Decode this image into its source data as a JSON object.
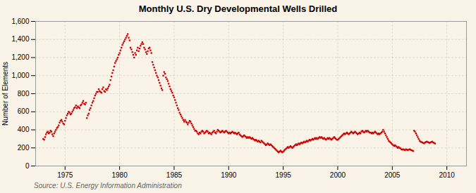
{
  "chart_data": {
    "type": "scatter",
    "title": "Monthly U.S. Dry Developmental Wells Drilled",
    "ylabel": "Number of Elements",
    "source": "Source: U.S. Energy Information Administration",
    "color": "#CC0000",
    "marker": "square",
    "grid": true,
    "xlim": [
      1972.3,
      2011.8
    ],
    "xticks": [
      1975,
      1980,
      1985,
      1990,
      1995,
      2000,
      2005,
      2010
    ],
    "ylim": [
      0,
      1600
    ],
    "yticks": [
      0,
      200,
      400,
      600,
      800,
      {
        "value": 1000,
        "label": "1,000"
      },
      {
        "value": 1200,
        "label": "1,200"
      },
      {
        "value": 1400,
        "label": "1,400"
      },
      {
        "value": 1600,
        "label": "1,600"
      }
    ],
    "x": [
      1973,
      1973.0833333333333,
      1973.1666666666667,
      1973.25,
      1973.3333333333333,
      1973.4166666666667,
      1973.5,
      1973.5833333333333,
      1973.6666666666667,
      1973.75,
      1973.8333333333333,
      1973.9166666666667,
      1974,
      1974.0833333333333,
      1974.1666666666667,
      1974.25,
      1974.3333333333333,
      1974.4166666666667,
      1974.5,
      1974.5833333333333,
      1974.6666666666667,
      1974.75,
      1974.8333333333333,
      1974.9166666666667,
      1975,
      1975.0833333333333,
      1975.1666666666667,
      1975.25,
      1975.3333333333333,
      1975.4166666666667,
      1975.5,
      1975.5833333333333,
      1975.6666666666667,
      1975.75,
      1975.8333333333333,
      1975.9166666666667,
      1976,
      1976.0833333333333,
      1976.1666666666667,
      1976.25,
      1976.3333333333333,
      1976.4166666666667,
      1976.5,
      1976.5833333333333,
      1976.6666666666667,
      1976.75,
      1976.8333333333333,
      1976.9166666666667,
      1977,
      1977.0833333333333,
      1977.1666666666667,
      1977.25,
      1977.3333333333333,
      1977.4166666666667,
      1977.5,
      1977.5833333333333,
      1977.6666666666667,
      1977.75,
      1977.8333333333333,
      1977.9166666666667,
      1978,
      1978.0833333333333,
      1978.1666666666667,
      1978.25,
      1978.3333333333333,
      1978.4166666666667,
      1978.5,
      1978.5833333333333,
      1978.6666666666667,
      1978.75,
      1978.8333333333333,
      1978.9166666666667,
      1979,
      1979.0833333333333,
      1979.1666666666667,
      1979.25,
      1979.3333333333333,
      1979.4166666666667,
      1979.5,
      1979.5833333333333,
      1979.6666666666667,
      1979.75,
      1979.8333333333333,
      1979.9166666666667,
      1980,
      1980.0833333333333,
      1980.1666666666667,
      1980.25,
      1980.3333333333333,
      1980.4166666666667,
      1980.5,
      1980.5833333333333,
      1980.6666666666667,
      1980.75,
      1980.8333333333333,
      1980.9166666666667,
      1981,
      1981.0833333333333,
      1981.1666666666667,
      1981.25,
      1981.3333333333333,
      1981.4166666666667,
      1981.5,
      1981.5833333333333,
      1981.6666666666667,
      1981.75,
      1981.8333333333333,
      1981.9166666666667,
      1982,
      1982.0833333333333,
      1982.1666666666667,
      1982.25,
      1982.3333333333333,
      1982.4166666666667,
      1982.5,
      1982.5833333333333,
      1982.6666666666667,
      1982.75,
      1982.8333333333333,
      1982.9166666666667,
      1983,
      1983.0833333333333,
      1983.1666666666667,
      1983.25,
      1983.3333333333333,
      1983.4166666666667,
      1983.5,
      1983.5833333333333,
      1983.6666666666667,
      1983.75,
      1983.8333333333333,
      1983.9166666666667,
      1984,
      1984.0833333333333,
      1984.1666666666667,
      1984.25,
      1984.3333333333333,
      1984.4166666666667,
      1984.5,
      1984.5833333333333,
      1984.6666666666667,
      1984.75,
      1984.8333333333333,
      1984.9166666666667,
      1985,
      1985.0833333333333,
      1985.1666666666667,
      1985.25,
      1985.3333333333333,
      1985.4166666666667,
      1985.5,
      1985.5833333333333,
      1985.6666666666667,
      1985.75,
      1985.8333333333333,
      1985.9166666666667,
      1986,
      1986.0833333333333,
      1986.1666666666667,
      1986.25,
      1986.3333333333333,
      1986.4166666666667,
      1986.5,
      1986.5833333333333,
      1986.6666666666667,
      1986.75,
      1986.8333333333333,
      1986.9166666666667,
      1987,
      1987.0833333333333,
      1987.1666666666667,
      1987.25,
      1987.3333333333333,
      1987.4166666666667,
      1987.5,
      1987.5833333333333,
      1987.6666666666667,
      1987.75,
      1987.8333333333333,
      1987.9166666666667,
      1988,
      1988.0833333333333,
      1988.1666666666667,
      1988.25,
      1988.3333333333333,
      1988.4166666666667,
      1988.5,
      1988.5833333333333,
      1988.6666666666667,
      1988.75,
      1988.8333333333333,
      1988.9166666666667,
      1989,
      1989.0833333333333,
      1989.1666666666667,
      1989.25,
      1989.3333333333333,
      1989.4166666666667,
      1989.5,
      1989.5833333333333,
      1989.6666666666667,
      1989.75,
      1989.8333333333333,
      1989.9166666666667,
      1990,
      1990.0833333333333,
      1990.1666666666667,
      1990.25,
      1990.3333333333333,
      1990.4166666666667,
      1990.5,
      1990.5833333333333,
      1990.6666666666667,
      1990.75,
      1990.8333333333333,
      1990.9166666666667,
      1991,
      1991.0833333333333,
      1991.1666666666667,
      1991.25,
      1991.3333333333333,
      1991.4166666666667,
      1991.5,
      1991.5833333333333,
      1991.6666666666667,
      1991.75,
      1991.8333333333333,
      1991.9166666666667,
      1992,
      1992.0833333333333,
      1992.1666666666667,
      1992.25,
      1992.3333333333333,
      1992.4166666666667,
      1992.5,
      1992.5833333333333,
      1992.6666666666667,
      1992.75,
      1992.8333333333333,
      1992.9166666666667,
      1993,
      1993.0833333333333,
      1993.1666666666667,
      1993.25,
      1993.3333333333333,
      1993.4166666666667,
      1993.5,
      1993.5833333333333,
      1993.6666666666667,
      1993.75,
      1993.8333333333333,
      1993.9166666666667,
      1994,
      1994.0833333333333,
      1994.1666666666667,
      1994.25,
      1994.3333333333333,
      1994.4166666666667,
      1994.5,
      1994.5833333333333,
      1994.6666666666667,
      1994.75,
      1994.8333333333333,
      1994.9166666666667,
      1995,
      1995.0833333333333,
      1995.1666666666667,
      1995.25,
      1995.3333333333333,
      1995.4166666666667,
      1995.5,
      1995.5833333333333,
      1995.6666666666667,
      1995.75,
      1995.8333333333333,
      1995.9166666666667,
      1996,
      1996.0833333333333,
      1996.1666666666667,
      1996.25,
      1996.3333333333333,
      1996.4166666666667,
      1996.5,
      1996.5833333333333,
      1996.6666666666667,
      1996.75,
      1996.8333333333333,
      1996.9166666666667,
      1997,
      1997.0833333333333,
      1997.1666666666667,
      1997.25,
      1997.3333333333333,
      1997.4166666666667,
      1997.5,
      1997.5833333333333,
      1997.6666666666667,
      1997.75,
      1997.8333333333333,
      1997.9166666666667,
      1998,
      1998.0833333333333,
      1998.1666666666667,
      1998.25,
      1998.3333333333333,
      1998.4166666666667,
      1998.5,
      1998.5833333333333,
      1998.6666666666667,
      1998.75,
      1998.8333333333333,
      1998.9166666666667,
      1999,
      1999.0833333333333,
      1999.1666666666667,
      1999.25,
      1999.3333333333333,
      1999.4166666666667,
      1999.5,
      1999.5833333333333,
      1999.6666666666667,
      1999.75,
      1999.8333333333333,
      1999.9166666666667,
      2000,
      2000.0833333333333,
      2000.1666666666667,
      2000.25,
      2000.3333333333333,
      2000.4166666666667,
      2000.5,
      2000.5833333333333,
      2000.6666666666667,
      2000.75,
      2000.8333333333333,
      2000.9166666666667,
      2001,
      2001.0833333333333,
      2001.1666666666667,
      2001.25,
      2001.3333333333333,
      2001.4166666666667,
      2001.5,
      2001.5833333333333,
      2001.6666666666667,
      2001.75,
      2001.8333333333333,
      2001.9166666666667,
      2002,
      2002.0833333333333,
      2002.1666666666667,
      2002.25,
      2002.3333333333333,
      2002.4166666666667,
      2002.5,
      2002.5833333333333,
      2002.6666666666667,
      2002.75,
      2002.8333333333333,
      2002.9166666666667,
      2003,
      2003.0833333333333,
      2003.1666666666667,
      2003.25,
      2003.3333333333333,
      2003.4166666666667,
      2003.5,
      2003.5833333333333,
      2003.6666666666667,
      2003.75,
      2003.8333333333333,
      2003.9166666666667,
      2004,
      2004.0833333333333,
      2004.1666666666667,
      2004.25,
      2004.3333333333333,
      2004.4166666666667,
      2004.5,
      2004.5833333333333,
      2004.6666666666667,
      2004.75,
      2004.8333333333333,
      2004.9166666666667,
      2005,
      2005.0833333333333,
      2005.1666666666667,
      2005.25,
      2005.3333333333333,
      2005.4166666666667,
      2005.5,
      2005.5833333333333,
      2005.6666666666667,
      2005.75,
      2005.8333333333333,
      2005.9166666666667,
      2006,
      2006.0833333333333,
      2006.1666666666667,
      2006.25,
      2006.3333333333333,
      2006.4166666666667,
      2006.5,
      2006.5833333333333,
      2006.6666666666667,
      2006.75,
      2006.8333333333333,
      2006.9166666666667,
      2007,
      2007.0833333333333,
      2007.1666666666667,
      2007.25,
      2007.3333333333333,
      2007.4166666666667,
      2007.5,
      2007.5833333333333,
      2007.6666666666667,
      2007.75,
      2007.8333333333333,
      2007.9166666666667,
      2008,
      2008.0833333333333,
      2008.1666666666667,
      2008.25,
      2008.3333333333333,
      2008.4166666666667,
      2008.5,
      2008.5833333333333,
      2008.6666666666667,
      2008.75,
      2008.8333333333333,
      2008.9166666666667
    ],
    "values": [
      300,
      290,
      320,
      350,
      370,
      380,
      360,
      370,
      390,
      380,
      350,
      330,
      360,
      380,
      400,
      420,
      430,
      450,
      480,
      500,
      510,
      490,
      470,
      460,
      500,
      530,
      560,
      580,
      600,
      590,
      570,
      580,
      600,
      620,
      640,
      650,
      670,
      640,
      660,
      650,
      640,
      670,
      680,
      700,
      720,
      690,
      680,
      700,
      530,
      560,
      580,
      620,
      640,
      670,
      700,
      720,
      750,
      780,
      800,
      820,
      820,
      850,
      830,
      820,
      810,
      850,
      870,
      830,
      820,
      850,
      840,
      860,
      880,
      900,
      950,
      990,
      1030,
      1060,
      1100,
      1140,
      1160,
      1180,
      1200,
      1230,
      1250,
      1280,
      1310,
      1340,
      1360,
      1380,
      1400,
      1420,
      1440,
      1460,
      1420,
      1390,
      1310,
      1290,
      1260,
      1230,
      1200,
      1250,
      1230,
      1280,
      1310,
      1270,
      1300,
      1330,
      1350,
      1370,
      1350,
      1310,
      1290,
      1260,
      1240,
      1270,
      1300,
      1310,
      1280,
      1250,
      1150,
      1120,
      1090,
      1060,
      1030,
      1000,
      980,
      950,
      920,
      890,
      860,
      840,
      1000,
      1040,
      1020,
      980,
      960,
      940,
      910,
      880,
      850,
      830,
      810,
      780,
      760,
      730,
      700,
      670,
      640,
      620,
      590,
      570,
      550,
      530,
      510,
      490,
      510,
      490,
      480,
      460,
      480,
      500,
      490,
      470,
      450,
      430,
      410,
      390,
      390,
      380,
      360,
      350,
      370,
      360,
      380,
      390,
      380,
      360,
      370,
      380,
      390,
      380,
      360,
      370,
      360,
      350,
      370,
      380,
      390,
      370,
      360,
      380,
      400,
      390,
      380,
      370,
      380,
      390,
      380,
      370,
      380,
      390,
      380,
      370,
      360,
      370,
      360,
      370,
      380,
      370,
      360,
      370,
      360,
      350,
      360,
      370,
      350,
      340,
      330,
      320,
      330,
      340,
      330,
      320,
      310,
      320,
      310,
      320,
      310,
      300,
      310,
      300,
      290,
      280,
      290,
      280,
      270,
      280,
      270,
      260,
      280,
      270,
      260,
      250,
      240,
      230,
      240,
      250,
      240,
      230,
      240,
      230,
      220,
      210,
      200,
      190,
      180,
      170,
      160,
      150,
      160,
      170,
      160,
      150,
      160,
      170,
      180,
      190,
      200,
      210,
      200,
      210,
      220,
      210,
      200,
      210,
      220,
      230,
      240,
      230,
      240,
      250,
      240,
      250,
      260,
      250,
      260,
      270,
      260,
      270,
      280,
      270,
      280,
      290,
      280,
      290,
      300,
      290,
      300,
      310,
      300,
      310,
      300,
      310,
      320,
      310,
      320,
      310,
      300,
      310,
      300,
      290,
      300,
      310,
      300,
      310,
      300,
      290,
      300,
      310,
      320,
      310,
      300,
      290,
      290,
      300,
      310,
      320,
      330,
      340,
      350,
      360,
      350,
      360,
      370,
      360,
      350,
      360,
      370,
      380,
      370,
      360,
      370,
      380,
      370,
      360,
      350,
      360,
      370,
      360,
      380,
      390,
      380,
      370,
      380,
      390,
      380,
      390,
      380,
      370,
      370,
      360,
      370,
      360,
      370,
      380,
      370,
      360,
      350,
      360,
      350,
      360,
      370,
      380,
      400,
      380,
      360,
      340,
      320,
      300,
      280,
      270,
      260,
      250,
      240,
      230,
      220,
      230,
      220,
      210,
      200,
      210,
      200,
      195,
      185,
      180,
      185,
      180,
      175,
      185,
      180,
      175,
      180,
      185,
      180,
      175,
      170,
      165,
      390,
      380,
      360,
      340,
      320,
      300,
      280,
      270,
      265,
      260,
      255,
      250,
      260,
      265,
      270,
      265,
      260,
      255,
      260,
      265,
      270,
      260,
      255,
      248
    ]
  }
}
